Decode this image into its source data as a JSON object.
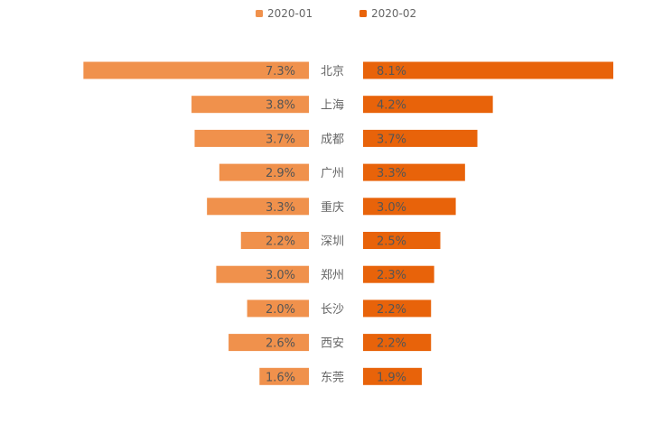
{
  "chart_data": {
    "type": "bar",
    "categories": [
      "北京",
      "上海",
      "成都",
      "广州",
      "重庆",
      "深圳",
      "郑州",
      "长沙",
      "西安",
      "东莞"
    ],
    "series": [
      {
        "name": "2020-01",
        "values": [
          7.3,
          3.8,
          3.7,
          2.9,
          3.3,
          2.2,
          3.0,
          2.0,
          2.6,
          1.6
        ],
        "labels": [
          "7.3%",
          "3.8%",
          "3.7%",
          "2.9%",
          "3.3%",
          "2.2%",
          "3.0%",
          "2.0%",
          "2.6%",
          "1.6%"
        ]
      },
      {
        "name": "2020-02",
        "values": [
          8.1,
          4.2,
          3.7,
          3.3,
          3.0,
          2.5,
          2.3,
          2.2,
          2.2,
          1.9
        ],
        "labels": [
          "8.1%",
          "4.2%",
          "3.7%",
          "3.3%",
          "3.0%",
          "2.5%",
          "2.3%",
          "2.2%",
          "2.2%",
          "1.9%"
        ]
      }
    ],
    "legend_position": "top-center",
    "orientation": "horizontal-butterfly",
    "grid": false
  },
  "colors": {
    "series_2020_01": "#f0914c",
    "series_2020_02": "#e8630a",
    "text": "#666666",
    "value_label": "#555555"
  }
}
